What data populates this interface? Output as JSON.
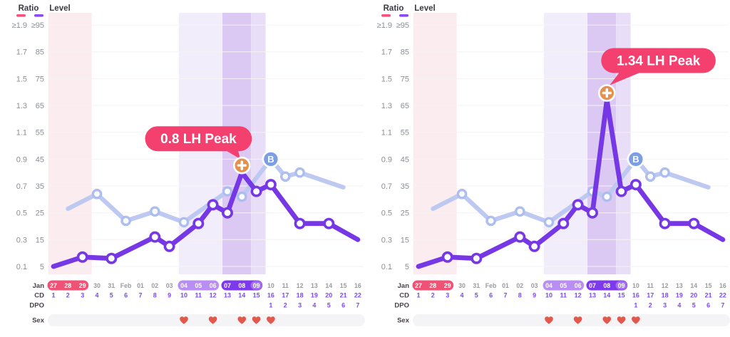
{
  "meta": {
    "panel": "LH peak cycle chart comparison"
  },
  "colors": {
    "lh_line": "#7638e4",
    "secondary_line": "#bdc9f1",
    "secondary_marker": "#adbeee",
    "peak_marker_fill": "#e4914f",
    "b_marker_fill": "#7c9fe3",
    "badge_bg": "#f3406e",
    "badge_text": "#ffffff",
    "period_band": "#fbecf0",
    "fertile_light_band": "#f2edfa",
    "fertile_dark_band": "#dbc9f3",
    "fertile_medium_band": "#e9def7",
    "gridline": "#f7f2f3",
    "period_pill": "#ee5376",
    "fertile_pill": "#b98ef2",
    "peak_pill": "#7c3aeb",
    "ovulation_bubble": "#a571ef",
    "date_text": "#9b9ba3",
    "cd_text": "#7c4cf0",
    "row_label_text": "#474249",
    "tick_text": "#8a8e96",
    "header_text": "#3c3943",
    "heart": "#e3584a",
    "sex_strip": "#f4f3f5",
    "ratio_legend_dash": "#f2557c",
    "level_legend_dash": "#8a4bf0"
  },
  "y_axis": {
    "ratio_header": "Ratio",
    "level_header": "Level",
    "values": [
      1.9,
      1.7,
      1.5,
      1.3,
      1.1,
      0.9,
      0.7,
      0.5,
      0.3,
      0.1
    ],
    "ratio_labels": [
      "≥1.9",
      "1.7",
      "1.5",
      "1.3",
      "1.1",
      "0.9",
      "0.7",
      "0.5",
      "0.3",
      "0.1"
    ],
    "level_labels": [
      "≥95",
      "85",
      "75",
      "65",
      "55",
      "45",
      "35",
      "25",
      "15",
      "5"
    ],
    "level_scale_note": "level = ratio x 50"
  },
  "x_axis": {
    "row_labels": {
      "month": "Jan",
      "cd": "CD",
      "dpo": "DPO",
      "sex": "Sex"
    },
    "days": [
      {
        "cd": 1,
        "date": "27",
        "pill": "period"
      },
      {
        "cd": 2,
        "date": "28",
        "pill": "period"
      },
      {
        "cd": 3,
        "date": "29",
        "pill": "period"
      },
      {
        "cd": 4,
        "date": "30"
      },
      {
        "cd": 5,
        "date": "31"
      },
      {
        "cd": 6,
        "date": "Feb"
      },
      {
        "cd": 7,
        "date": "01"
      },
      {
        "cd": 8,
        "date": "02"
      },
      {
        "cd": 9,
        "date": "03"
      },
      {
        "cd": 10,
        "date": "04",
        "pill": "fertile"
      },
      {
        "cd": 11,
        "date": "05",
        "pill": "fertile"
      },
      {
        "cd": 12,
        "date": "06",
        "pill": "fertile"
      },
      {
        "cd": 13,
        "date": "07",
        "pill": "peak"
      },
      {
        "cd": 14,
        "date": "08",
        "pill": "peak"
      },
      {
        "cd": 15,
        "date": "09",
        "pill": "peak",
        "bubble": true
      },
      {
        "cd": 16,
        "date": "10",
        "dpo": "1"
      },
      {
        "cd": 17,
        "date": "11",
        "dpo": "2"
      },
      {
        "cd": 18,
        "date": "12",
        "dpo": "3"
      },
      {
        "cd": 19,
        "date": "13",
        "dpo": "4"
      },
      {
        "cd": 20,
        "date": "14",
        "dpo": "5"
      },
      {
        "cd": 21,
        "date": "15",
        "dpo": "6"
      },
      {
        "cd": 22,
        "date": "16",
        "dpo": "7"
      }
    ],
    "sex_heart_cds": [
      10,
      12,
      14,
      15,
      16
    ]
  },
  "bands": [
    {
      "name": "period",
      "cd_from": 1,
      "cd_to": 3,
      "color_key": "period_band"
    },
    {
      "name": "fertile-light",
      "cd_from": 10,
      "cd_to": 12,
      "color_key": "fertile_light_band"
    },
    {
      "name": "fertile-dark",
      "cd_from": 13,
      "cd_to": 14,
      "color_key": "fertile_dark_band"
    },
    {
      "name": "fertile-medium",
      "cd_from": 15,
      "cd_to": 15,
      "color_key": "fertile_medium_band"
    }
  ],
  "chart_data": [
    {
      "id": "cycle-chart-left",
      "type": "line",
      "badge": {
        "text": "0.8 LH Peak",
        "side": "left"
      },
      "peak": {
        "cd": 14,
        "ratio": 0.8,
        "level": 40
      },
      "peak_marker_glyph": "+",
      "b_marker_label": "B",
      "series": [
        {
          "name": "LH test ratio",
          "axis": "ratio",
          "color_key": "lh_line",
          "marker_cds": [
            3,
            5,
            8,
            9,
            11,
            12,
            13,
            15,
            16,
            18,
            20
          ],
          "points": [
            {
              "cd": 1,
              "ratio": 0.1,
              "level": 5
            },
            {
              "cd": 3,
              "ratio": 0.17,
              "level": 8.5
            },
            {
              "cd": 5,
              "ratio": 0.16,
              "level": 8
            },
            {
              "cd": 8,
              "ratio": 0.32,
              "level": 16
            },
            {
              "cd": 9,
              "ratio": 0.25,
              "level": 12.5
            },
            {
              "cd": 11,
              "ratio": 0.42,
              "level": 21
            },
            {
              "cd": 12,
              "ratio": 0.56,
              "level": 28
            },
            {
              "cd": 13,
              "ratio": 0.5,
              "level": 25
            },
            {
              "cd": 14,
              "ratio": 0.8,
              "level": 40
            },
            {
              "cd": 15,
              "ratio": 0.66,
              "level": 33
            },
            {
              "cd": 16,
              "ratio": 0.71,
              "level": 35.5
            },
            {
              "cd": 18,
              "ratio": 0.42,
              "level": 21
            },
            {
              "cd": 20,
              "ratio": 0.42,
              "level": 21
            },
            {
              "cd": 22,
              "ratio": 0.3,
              "level": 15
            }
          ]
        },
        {
          "name": "secondary hormone level",
          "axis": "level",
          "color_key": "secondary_line",
          "marker_cds": [
            4,
            6,
            8,
            10,
            13,
            14,
            17,
            18
          ],
          "b_marker_cd": 16,
          "points": [
            {
              "cd": 2,
              "ratio": 0.53,
              "level": 26.5
            },
            {
              "cd": 4,
              "ratio": 0.64,
              "level": 32
            },
            {
              "cd": 6,
              "ratio": 0.44,
              "level": 22
            },
            {
              "cd": 8,
              "ratio": 0.51,
              "level": 25.5
            },
            {
              "cd": 10,
              "ratio": 0.43,
              "level": 21.5
            },
            {
              "cd": 13,
              "ratio": 0.66,
              "level": 33
            },
            {
              "cd": 14,
              "ratio": 0.62,
              "level": 31
            },
            {
              "cd": 16,
              "ratio": 0.9,
              "level": 45
            },
            {
              "cd": 17,
              "ratio": 0.77,
              "level": 38.5
            },
            {
              "cd": 18,
              "ratio": 0.8,
              "level": 40
            },
            {
              "cd": 21,
              "ratio": 0.69,
              "level": 34.5
            }
          ]
        }
      ]
    },
    {
      "id": "cycle-chart-right",
      "type": "line",
      "badge": {
        "text": "1.34 LH Peak",
        "side": "right"
      },
      "peak": {
        "cd": 14,
        "ratio": 1.34,
        "level": 67
      },
      "peak_marker_glyph": "+",
      "b_marker_label": "B",
      "series": [
        {
          "name": "LH test ratio",
          "axis": "ratio",
          "color_key": "lh_line",
          "marker_cds": [
            3,
            5,
            8,
            9,
            11,
            12,
            13,
            15,
            16,
            18,
            20
          ],
          "points": [
            {
              "cd": 1,
              "ratio": 0.1,
              "level": 5
            },
            {
              "cd": 3,
              "ratio": 0.17,
              "level": 8.5
            },
            {
              "cd": 5,
              "ratio": 0.16,
              "level": 8
            },
            {
              "cd": 8,
              "ratio": 0.32,
              "level": 16
            },
            {
              "cd": 9,
              "ratio": 0.25,
              "level": 12.5
            },
            {
              "cd": 11,
              "ratio": 0.42,
              "level": 21
            },
            {
              "cd": 12,
              "ratio": 0.56,
              "level": 28
            },
            {
              "cd": 13,
              "ratio": 0.5,
              "level": 25
            },
            {
              "cd": 14,
              "ratio": 1.34,
              "level": 67
            },
            {
              "cd": 15,
              "ratio": 0.66,
              "level": 33
            },
            {
              "cd": 16,
              "ratio": 0.71,
              "level": 35.5
            },
            {
              "cd": 18,
              "ratio": 0.42,
              "level": 21
            },
            {
              "cd": 20,
              "ratio": 0.42,
              "level": 21
            },
            {
              "cd": 22,
              "ratio": 0.3,
              "level": 15
            }
          ]
        },
        {
          "name": "secondary hormone level",
          "axis": "level",
          "color_key": "secondary_line",
          "marker_cds": [
            4,
            6,
            8,
            10,
            13,
            14,
            17,
            18
          ],
          "b_marker_cd": 16,
          "points": [
            {
              "cd": 2,
              "ratio": 0.53,
              "level": 26.5
            },
            {
              "cd": 4,
              "ratio": 0.64,
              "level": 32
            },
            {
              "cd": 6,
              "ratio": 0.44,
              "level": 22
            },
            {
              "cd": 8,
              "ratio": 0.51,
              "level": 25.5
            },
            {
              "cd": 10,
              "ratio": 0.43,
              "level": 21.5
            },
            {
              "cd": 13,
              "ratio": 0.66,
              "level": 33
            },
            {
              "cd": 14,
              "ratio": 0.62,
              "level": 31
            },
            {
              "cd": 16,
              "ratio": 0.9,
              "level": 45
            },
            {
              "cd": 17,
              "ratio": 0.77,
              "level": 38.5
            },
            {
              "cd": 18,
              "ratio": 0.8,
              "level": 40
            },
            {
              "cd": 21,
              "ratio": 0.69,
              "level": 34.5
            }
          ]
        }
      ]
    }
  ]
}
